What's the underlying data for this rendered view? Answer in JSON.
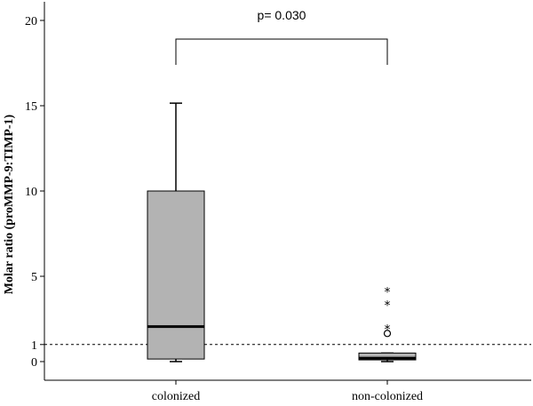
{
  "chart_data": {
    "type": "box",
    "title": "",
    "xlabel": "",
    "ylabel": "Molar ratio (proMMP-9:TIMP-1)",
    "categories": [
      "colonized",
      "non-colonized"
    ],
    "ylim": [
      -1,
      21
    ],
    "yticks": [
      0,
      1,
      5,
      10,
      15,
      20
    ],
    "boxes": [
      {
        "category": "colonized",
        "whisker_low": 0.0,
        "q1": 0.15,
        "median": 2.05,
        "q3": 10.0,
        "whisker_high": 15.15,
        "outliers": [],
        "extremes": []
      },
      {
        "category": "non-colonized",
        "whisker_low": 0.0,
        "q1": 0.1,
        "median": 0.2,
        "q3": 0.5,
        "whisker_high": 0.5,
        "outliers": [
          1.65
        ],
        "extremes": [
          2.0,
          3.4,
          4.2
        ]
      }
    ],
    "reference_line": {
      "y": 1.0,
      "style": "dashed"
    },
    "annotation": {
      "text": "p= 0.030"
    },
    "colors": {
      "box_fill": "#b3b3b3",
      "stroke": "#000000",
      "background": "#ffffff"
    }
  }
}
